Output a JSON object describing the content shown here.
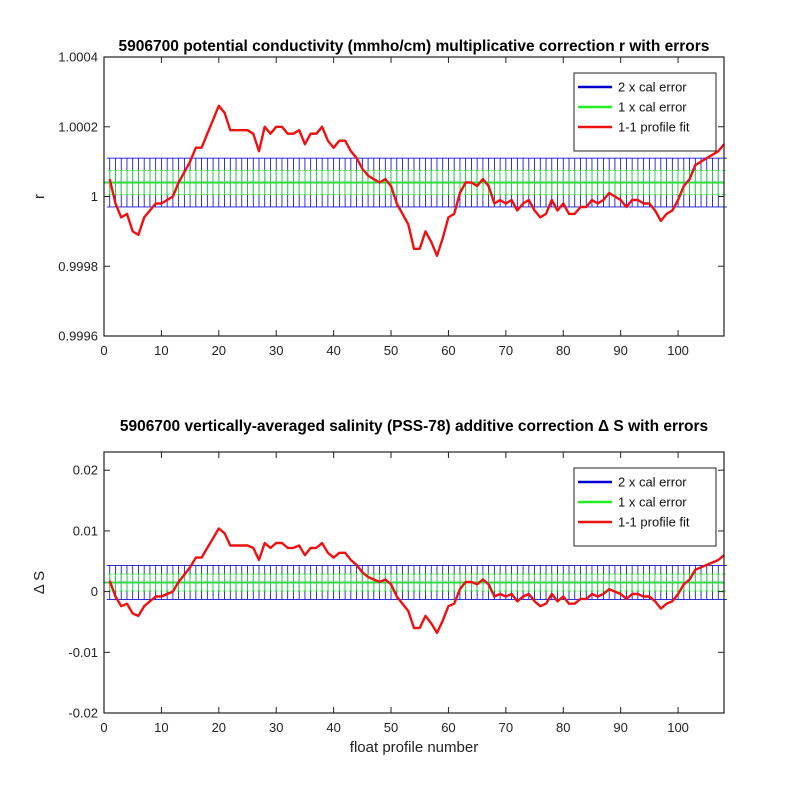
{
  "chart_data": [
    {
      "type": "line",
      "title": "5906700 potential conductivity (mmho/cm) multiplicative correction r with errors",
      "xlabel": "",
      "ylabel": "r",
      "xlim": [
        0,
        108
      ],
      "ylim": [
        0.9996,
        1.0004
      ],
      "xticks": [
        0,
        10,
        20,
        30,
        40,
        50,
        60,
        70,
        80,
        90,
        100
      ],
      "xtick_labels": [
        "0",
        "10",
        "20",
        "30",
        "40",
        "50",
        "60",
        "70",
        "80",
        "90",
        "100"
      ],
      "yticks": [
        0.9996,
        0.9998,
        1,
        1.0002,
        1.0004
      ],
      "ytick_labels": [
        "0.9996",
        "0.9998",
        "1",
        "1.0002",
        "1.0004"
      ],
      "grid": false,
      "legend_position": "top-right",
      "series": [
        {
          "name": "2 x cal error",
          "color": "#0000cc",
          "mean": 1.00004,
          "error": 7e-05
        },
        {
          "name": "1 x cal error",
          "color": "#22ee22",
          "mean": 1.00004,
          "error": 3.5e-05
        },
        {
          "name": "1-1 profile fit",
          "color": "#ee1111",
          "x": [
            1,
            2,
            3,
            4,
            5,
            6,
            7,
            8,
            9,
            10,
            11,
            12,
            13,
            14,
            15,
            16,
            17,
            18,
            19,
            20,
            21,
            22,
            23,
            24,
            25,
            26,
            27,
            28,
            29,
            30,
            31,
            32,
            33,
            34,
            35,
            36,
            37,
            38,
            39,
            40,
            41,
            42,
            43,
            44,
            45,
            46,
            47,
            48,
            49,
            50,
            51,
            52,
            53,
            54,
            55,
            56,
            57,
            58,
            59,
            60,
            61,
            62,
            63,
            64,
            65,
            66,
            67,
            68,
            69,
            70,
            71,
            72,
            73,
            74,
            75,
            76,
            77,
            78,
            79,
            80,
            81,
            82,
            83,
            84,
            85,
            86,
            87,
            88,
            89,
            90,
            91,
            92,
            93,
            94,
            95,
            96,
            97,
            98,
            99,
            100,
            101,
            102,
            103,
            104,
            105,
            106,
            107,
            108
          ],
          "y": [
            1.00005,
            0.99998,
            0.99994,
            0.99995,
            0.9999,
            0.99989,
            0.99994,
            0.99996,
            0.99998,
            0.99998,
            0.99999,
            1.0,
            1.00004,
            1.00007,
            1.0001,
            1.00014,
            1.00014,
            1.00018,
            1.00022,
            1.00026,
            1.00024,
            1.00019,
            1.00019,
            1.00019,
            1.00019,
            1.00018,
            1.00013,
            1.0002,
            1.00018,
            1.0002,
            1.0002,
            1.00018,
            1.00018,
            1.00019,
            1.00015,
            1.00018,
            1.00018,
            1.0002,
            1.00016,
            1.00014,
            1.00016,
            1.00016,
            1.00013,
            1.00011,
            1.00008,
            1.00006,
            1.00005,
            1.00004,
            1.00005,
            1.00003,
            0.99998,
            0.99995,
            0.99992,
            0.99985,
            0.99985,
            0.9999,
            0.99987,
            0.99983,
            0.99988,
            0.99994,
            0.99995,
            1.00001,
            1.00004,
            1.00004,
            1.00003,
            1.00005,
            1.00003,
            0.99998,
            0.99999,
            0.99998,
            0.99999,
            0.99996,
            0.99998,
            0.99999,
            0.99996,
            0.99994,
            0.99995,
            0.99999,
            0.99996,
            0.99998,
            0.99995,
            0.99995,
            0.99997,
            0.99997,
            0.99999,
            0.99998,
            0.99999,
            1.00001,
            1.0,
            0.99999,
            0.99997,
            0.99999,
            0.99999,
            0.99998,
            0.99998,
            0.99996,
            0.99993,
            0.99995,
            0.99996,
            0.99999,
            1.00003,
            1.00005,
            1.00009,
            1.0001,
            1.00011,
            1.00012,
            1.00013,
            1.00015
          ]
        }
      ]
    },
    {
      "type": "line",
      "title": "5906700 vertically-averaged salinity (PSS-78) additive correction Δ S with errors",
      "xlabel": "float profile number",
      "ylabel": "Δ S",
      "xlim": [
        0,
        108
      ],
      "ylim": [
        -0.02,
        0.023
      ],
      "xticks": [
        0,
        10,
        20,
        30,
        40,
        50,
        60,
        70,
        80,
        90,
        100
      ],
      "xtick_labels": [
        "0",
        "10",
        "20",
        "30",
        "40",
        "50",
        "60",
        "70",
        "80",
        "90",
        "100"
      ],
      "yticks": [
        -0.02,
        -0.01,
        0,
        0.01,
        0.02
      ],
      "ytick_labels": [
        "-0.02",
        "-0.01",
        "0",
        "0.01",
        "0.02"
      ],
      "grid": false,
      "legend_position": "top-right",
      "series": [
        {
          "name": "2 x cal error",
          "color": "#0000cc",
          "mean": 0.0015,
          "error": 0.0028
        },
        {
          "name": "1 x cal error",
          "color": "#22ee22",
          "mean": 0.0015,
          "error": 0.0014
        },
        {
          "name": "1-1 profile fit",
          "color": "#ee1111",
          "x": [
            1,
            2,
            3,
            4,
            5,
            6,
            7,
            8,
            9,
            10,
            11,
            12,
            13,
            14,
            15,
            16,
            17,
            18,
            19,
            20,
            21,
            22,
            23,
            24,
            25,
            26,
            27,
            28,
            29,
            30,
            31,
            32,
            33,
            34,
            35,
            36,
            37,
            38,
            39,
            40,
            41,
            42,
            43,
            44,
            45,
            46,
            47,
            48,
            49,
            50,
            51,
            52,
            53,
            54,
            55,
            56,
            57,
            58,
            59,
            60,
            61,
            62,
            63,
            64,
            65,
            66,
            67,
            68,
            69,
            70,
            71,
            72,
            73,
            74,
            75,
            76,
            77,
            78,
            79,
            80,
            81,
            82,
            83,
            84,
            85,
            86,
            87,
            88,
            89,
            90,
            91,
            92,
            93,
            94,
            95,
            96,
            97,
            98,
            99,
            100,
            101,
            102,
            103,
            104,
            105,
            106,
            107,
            108
          ],
          "y": [
            0.0018,
            -0.0008,
            -0.0024,
            -0.002,
            -0.0036,
            -0.004,
            -0.0024,
            -0.0016,
            -0.0008,
            -0.0008,
            -0.0004,
            0.0,
            0.0016,
            0.0028,
            0.004,
            0.0056,
            0.0056,
            0.0072,
            0.0088,
            0.0104,
            0.0096,
            0.0076,
            0.0076,
            0.0076,
            0.0076,
            0.0072,
            0.0052,
            0.008,
            0.0072,
            0.008,
            0.008,
            0.0072,
            0.0072,
            0.0076,
            0.006,
            0.0072,
            0.0072,
            0.008,
            0.0064,
            0.0056,
            0.0064,
            0.0064,
            0.0052,
            0.0044,
            0.0032,
            0.0024,
            0.002,
            0.0016,
            0.002,
            0.0012,
            -0.0008,
            -0.002,
            -0.0032,
            -0.006,
            -0.006,
            -0.004,
            -0.0052,
            -0.0068,
            -0.0048,
            -0.0024,
            -0.002,
            0.0004,
            0.0016,
            0.0016,
            0.0012,
            0.002,
            0.0012,
            -0.0008,
            -0.0004,
            -0.0008,
            -0.0004,
            -0.0016,
            -0.0008,
            -0.0004,
            -0.0016,
            -0.0024,
            -0.002,
            -0.0004,
            -0.0016,
            -0.0008,
            -0.002,
            -0.002,
            -0.0012,
            -0.0012,
            -0.0004,
            -0.0008,
            -0.0004,
            0.0004,
            0.0,
            -0.0004,
            -0.0012,
            -0.0004,
            -0.0004,
            -0.0008,
            -0.0008,
            -0.0016,
            -0.0028,
            -0.002,
            -0.0016,
            -0.0004,
            0.0012,
            0.002,
            0.0036,
            0.004,
            0.0044,
            0.0048,
            0.0052,
            0.006
          ]
        }
      ]
    }
  ]
}
